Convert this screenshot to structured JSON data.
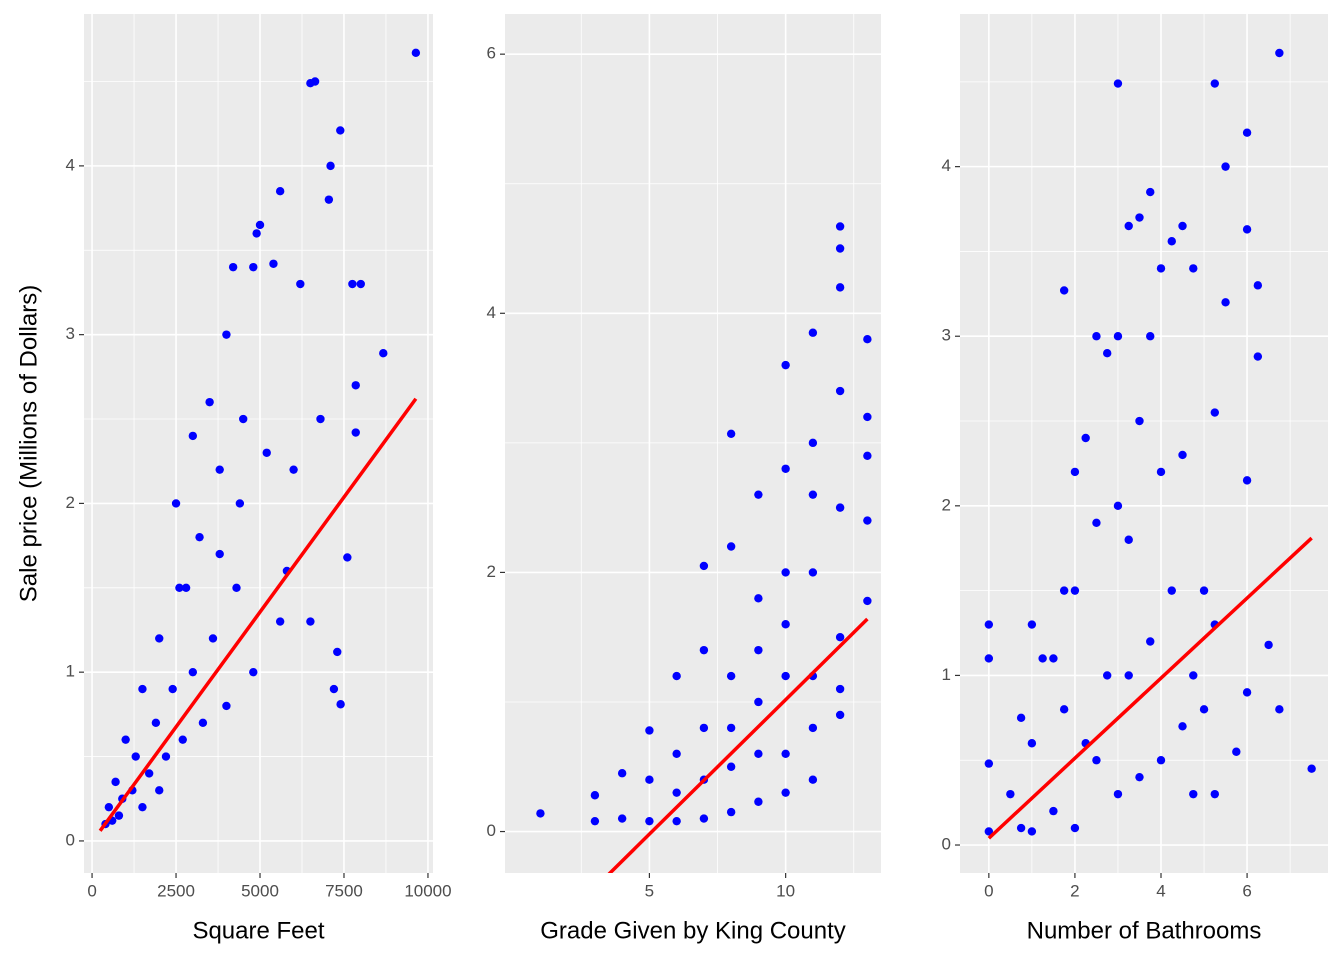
{
  "chart_data": [
    {
      "type": "scatter",
      "x_label": "Square Feet",
      "y_label": "Sale price (Millions of Dollars)",
      "color": "#0000ff",
      "xlim": [
        -240,
        10150
      ],
      "ylim": [
        -0.19,
        4.9
      ],
      "xticks": [
        0,
        2500,
        5000,
        7500,
        10000
      ],
      "yticks": [
        0,
        1,
        2,
        3,
        4
      ],
      "x": [
        9640,
        6500,
        6640,
        7390,
        7100,
        7050,
        5600,
        5000,
        4900,
        4800,
        4200,
        5400,
        6200,
        7750,
        8000,
        8670,
        7850,
        7850,
        7600,
        7300,
        7400,
        7200,
        4000,
        3500,
        3000,
        3800,
        2500,
        4500,
        3200,
        2800,
        2000,
        1500,
        1000,
        700,
        500,
        800,
        1200,
        1700,
        2200,
        2700,
        3300,
        4000,
        4800,
        5600,
        6500,
        5800,
        3600,
        4300,
        2400,
        1900,
        1300,
        900,
        600,
        400,
        3000,
        2000,
        1500,
        2600,
        3800,
        4400,
        5200,
        6000,
        6800
      ],
      "values": [
        4.67,
        4.49,
        4.5,
        4.21,
        4.0,
        3.8,
        3.85,
        3.65,
        3.6,
        3.4,
        3.4,
        3.42,
        3.3,
        3.3,
        3.3,
        2.89,
        2.7,
        2.42,
        1.68,
        1.12,
        0.81,
        0.9,
        3.0,
        2.6,
        2.4,
        2.2,
        2.0,
        2.5,
        1.8,
        1.5,
        1.2,
        0.9,
        0.6,
        0.35,
        0.2,
        0.15,
        0.3,
        0.4,
        0.5,
        0.6,
        0.7,
        0.8,
        1.0,
        1.3,
        1.3,
        1.6,
        1.2,
        1.5,
        0.9,
        0.7,
        0.5,
        0.25,
        0.12,
        0.1,
        1.0,
        0.3,
        0.2,
        1.5,
        1.7,
        2.0,
        2.3,
        2.2,
        2.5
      ],
      "fit": {
        "color": "#ff0000",
        "x": [
          240,
          9640
        ],
        "values": [
          0.06,
          2.62
        ]
      }
    },
    {
      "type": "scatter",
      "x_label": "Grade Given by King County",
      "color": "#0000ff",
      "xlim": [
        -0.3,
        13.5
      ],
      "ylim": [
        -0.32,
        6.31
      ],
      "xticks": [
        5,
        10
      ],
      "yticks": [
        0,
        2,
        4,
        6
      ],
      "x": [
        1,
        3,
        3,
        4,
        4,
        5,
        5,
        6,
        6,
        6,
        7,
        7,
        7,
        7,
        8,
        8,
        8,
        8,
        8,
        9,
        9,
        9,
        9,
        9,
        10,
        10,
        10,
        10,
        10,
        10,
        11,
        11,
        11,
        11,
        11,
        11,
        12,
        12,
        12,
        12,
        12,
        12,
        12,
        13,
        13,
        13,
        13,
        13,
        12,
        11,
        10,
        9,
        8,
        7,
        6,
        5
      ],
      "values": [
        0.14,
        0.08,
        0.28,
        0.1,
        0.45,
        0.08,
        0.78,
        0.08,
        1.2,
        0.6,
        0.1,
        2.05,
        1.4,
        0.8,
        0.15,
        3.07,
        2.2,
        1.2,
        0.5,
        0.23,
        2.6,
        1.8,
        1.0,
        0.6,
        0.3,
        3.6,
        2.8,
        2.0,
        1.2,
        0.6,
        0.4,
        3.85,
        3.0,
        2.0,
        1.2,
        0.8,
        0.9,
        4.67,
        4.5,
        4.2,
        3.4,
        2.5,
        1.5,
        3.8,
        3.2,
        2.9,
        2.4,
        1.78,
        1.1,
        2.6,
        1.6,
        1.4,
        0.8,
        0.4,
        0.3,
        0.4
      ],
      "fit": {
        "color": "#ff0000",
        "x": [
          1,
          13
        ],
        "values": [
          -0.85,
          1.64
        ]
      }
    },
    {
      "type": "scatter",
      "x_label": "Number of Bathrooms",
      "color": "#0000ff",
      "xlim": [
        -0.67,
        7.88
      ],
      "ylim": [
        -0.165,
        4.9
      ],
      "xticks": [
        0,
        2,
        4,
        6
      ],
      "yticks": [
        0,
        1,
        2,
        3,
        4
      ],
      "x": [
        0,
        0,
        0,
        0,
        0.5,
        0.75,
        0.75,
        1,
        1,
        1,
        1.25,
        1.5,
        1.5,
        1.75,
        1.75,
        1.75,
        2,
        2,
        2,
        2.25,
        2.5,
        2.5,
        2.5,
        2.75,
        2.75,
        3,
        3,
        3,
        3,
        3.25,
        3.25,
        3.5,
        3.5,
        3.5,
        3.75,
        3.75,
        3.75,
        4,
        4,
        4,
        4.25,
        4.25,
        4.5,
        4.5,
        4.5,
        4.75,
        4.75,
        5,
        5,
        5.25,
        5.25,
        5.5,
        5.5,
        5.75,
        6,
        6,
        6,
        6,
        6.25,
        6.25,
        6.5,
        6.75,
        6.75,
        7.5,
        5.25,
        5.25,
        2.25,
        3.25,
        4.75
      ],
      "values": [
        0.08,
        0.48,
        1.1,
        1.3,
        0.3,
        0.1,
        0.75,
        0.08,
        1.3,
        0.6,
        1.1,
        1.1,
        0.2,
        3.27,
        1.5,
        0.8,
        0.1,
        2.2,
        1.5,
        2.4,
        3.0,
        1.9,
        0.5,
        2.9,
        1.0,
        4.49,
        3.0,
        2.0,
        0.3,
        3.65,
        1.8,
        3.7,
        2.5,
        0.4,
        3.85,
        3.0,
        1.2,
        3.4,
        2.2,
        0.5,
        3.56,
        1.5,
        3.65,
        2.3,
        0.7,
        3.4,
        1.0,
        1.5,
        0.8,
        4.49,
        0.3,
        4.0,
        3.2,
        0.55,
        4.2,
        3.63,
        2.15,
        0.9,
        3.3,
        2.88,
        1.18,
        4.67,
        0.8,
        0.45,
        2.55,
        1.3,
        0.6,
        1.0,
        0.3
      ],
      "fit": {
        "color": "#ff0000",
        "x": [
          0,
          7.5
        ],
        "values": [
          0.04,
          1.81
        ]
      }
    }
  ]
}
